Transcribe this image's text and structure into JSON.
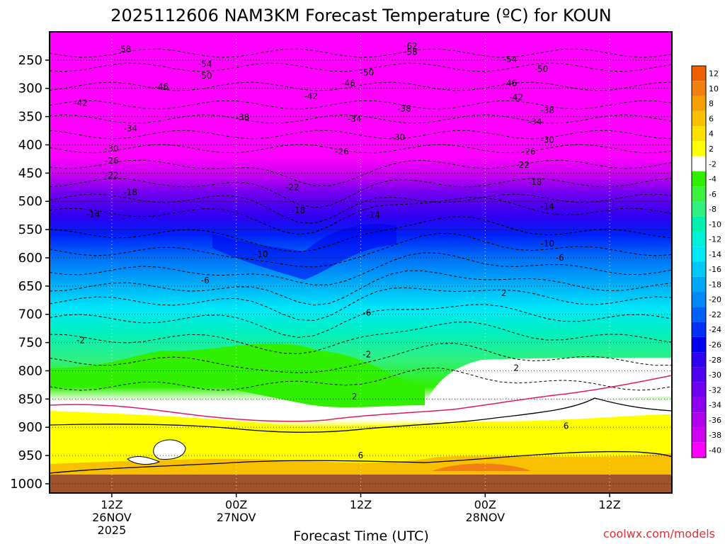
{
  "chart_data": {
    "type": "heatmap",
    "title": "2025112606 NAM3KM Forecast Temperature (ºC) for KOUN",
    "xlabel": "Forecast Time (UTC)",
    "ylabel": "",
    "watermark": "coolwx.com/models",
    "y_ticks": [
      250,
      300,
      350,
      400,
      450,
      500,
      550,
      600,
      650,
      700,
      750,
      800,
      850,
      900,
      950,
      1000
    ],
    "y_tick_labels": [
      "250",
      "300",
      "350",
      "400",
      "450",
      "500",
      "550",
      "600",
      "650",
      "700",
      "750",
      "800",
      "850",
      "900",
      "950",
      "1000"
    ],
    "ylim_hpa": [
      200,
      1000
    ],
    "x_ticks": [
      {
        "line1": "12Z",
        "line2": "26NOV",
        "line3": "2025"
      },
      {
        "line1": "00Z",
        "line2": "27NOV",
        "line3": ""
      },
      {
        "line1": "12Z",
        "line2": "",
        "line3": ""
      },
      {
        "line1": "00Z",
        "line2": "28NOV",
        "line3": ""
      },
      {
        "line1": "12Z",
        "line2": "",
        "line3": ""
      }
    ],
    "colorbar": {
      "levels": [
        "12",
        "10",
        "8",
        "6",
        "4",
        "2",
        "-2",
        "-4",
        "-6",
        "-8",
        "-10",
        "-12",
        "-14",
        "-16",
        "-18",
        "-20",
        "-22",
        "-24",
        "-26",
        "-28",
        "-30",
        "-32",
        "-34",
        "-36",
        "-38",
        "-40"
      ],
      "colors": [
        "#f06000",
        "#f28010",
        "#f5a000",
        "#f8c000",
        "#fce000",
        "#ffff00",
        "#ffffff",
        "#30f000",
        "#3cf040",
        "#30f080",
        "#00f0b0",
        "#00f0d8",
        "#00e8f8",
        "#00c8f8",
        "#00a8f8",
        "#0088f8",
        "#0060f8",
        "#0030f8",
        "#0000f0",
        "#3000f0",
        "#5000f0",
        "#7000f0",
        "#9000f0",
        "#b000f0",
        "#d000f0",
        "#ff00ff"
      ]
    },
    "contour_labels": [
      {
        "text": "-62",
        "t": 58,
        "p": 225
      },
      {
        "text": "-58",
        "t": 12,
        "p": 231
      },
      {
        "text": "-58",
        "t": 58,
        "p": 236
      },
      {
        "text": "-54",
        "t": 25,
        "p": 257
      },
      {
        "text": "-54",
        "t": 74,
        "p": 249
      },
      {
        "text": "-50",
        "t": 25,
        "p": 278
      },
      {
        "text": "-50",
        "t": 51,
        "p": 272
      },
      {
        "text": "-50",
        "t": 79,
        "p": 266
      },
      {
        "text": "-46",
        "t": 18,
        "p": 297
      },
      {
        "text": "-46",
        "t": 48,
        "p": 291
      },
      {
        "text": "-46",
        "t": 74,
        "p": 291
      },
      {
        "text": "-42",
        "t": 5,
        "p": 326
      },
      {
        "text": "-42",
        "t": 42,
        "p": 314
      },
      {
        "text": "-42",
        "t": 75,
        "p": 316
      },
      {
        "text": "-38",
        "t": 31,
        "p": 351
      },
      {
        "text": "-38",
        "t": 57,
        "p": 336
      },
      {
        "text": "-38",
        "t": 80,
        "p": 339
      },
      {
        "text": "-34",
        "t": 13,
        "p": 371
      },
      {
        "text": "-34",
        "t": 49,
        "p": 354
      },
      {
        "text": "-34",
        "t": 78,
        "p": 359
      },
      {
        "text": "-30",
        "t": 10,
        "p": 407
      },
      {
        "text": "-30",
        "t": 56,
        "p": 387
      },
      {
        "text": "-30",
        "t": 80,
        "p": 391
      },
      {
        "text": "-26",
        "t": 10,
        "p": 428
      },
      {
        "text": "-26",
        "t": 47,
        "p": 412
      },
      {
        "text": "-26",
        "t": 77,
        "p": 412
      },
      {
        "text": "-22",
        "t": 10,
        "p": 454
      },
      {
        "text": "-22",
        "t": 39,
        "p": 475
      },
      {
        "text": "-22",
        "t": 76,
        "p": 436
      },
      {
        "text": "-18",
        "t": 13,
        "p": 484
      },
      {
        "text": "-18",
        "t": 40,
        "p": 516
      },
      {
        "text": "-18",
        "t": 78,
        "p": 466
      },
      {
        "text": "-14",
        "t": 7,
        "p": 523
      },
      {
        "text": "-14",
        "t": 52,
        "p": 524
      },
      {
        "text": "-14",
        "t": 80,
        "p": 509
      },
      {
        "text": "-10",
        "t": 34,
        "p": 594
      },
      {
        "text": "-10",
        "t": 80,
        "p": 575
      },
      {
        "text": "-6",
        "t": 25,
        "p": 640
      },
      {
        "text": "-6",
        "t": 51,
        "p": 697
      },
      {
        "text": "-6",
        "t": 82,
        "p": 600
      },
      {
        "text": "-2",
        "t": 5,
        "p": 746
      },
      {
        "text": "-2",
        "t": 51,
        "p": 771
      },
      {
        "text": "2",
        "t": 73,
        "p": 663
      },
      {
        "text": "2",
        "t": 75,
        "p": 795
      },
      {
        "text": "2",
        "t": 49,
        "p": 846
      },
      {
        "text": "6",
        "t": 50,
        "p": 950
      },
      {
        "text": "6",
        "t": 83,
        "p": 898
      }
    ]
  }
}
